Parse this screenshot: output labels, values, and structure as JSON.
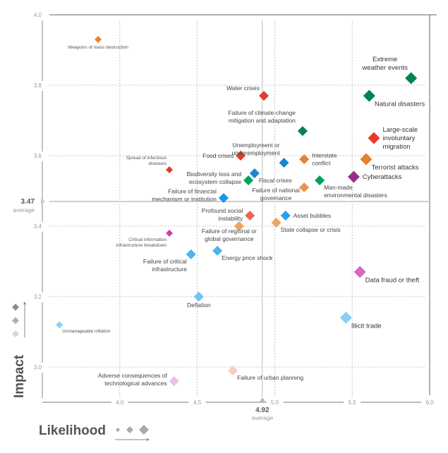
{
  "chart_data": {
    "type": "scatter",
    "title": "",
    "xlabel": "Likelihood",
    "ylabel": "Impact",
    "xlim": [
      3.5,
      6.0
    ],
    "ylim": [
      2.9,
      4.0
    ],
    "x_ticks": [
      "4.0",
      "4.5",
      "5.0",
      "5.5",
      "6.0"
    ],
    "y_ticks": [
      "4.0",
      "3.8",
      "3.6",
      "3.4",
      "3.2",
      "3.0"
    ],
    "grid": true,
    "averages": {
      "x": {
        "value": 4.92,
        "label": "4.92",
        "caption": "average"
      },
      "y": {
        "value": 3.47,
        "label": "3.47",
        "caption": "average"
      }
    },
    "points": [
      {
        "name": "Weapons of mass destruction",
        "lines": [
          "Weapons of mass destruction"
        ],
        "x": 3.86,
        "y": 3.93,
        "color": "#e8812c",
        "size": "s",
        "label_pos": "below"
      },
      {
        "name": "Extreme weather events",
        "lines": [
          "Extreme",
          "weather events"
        ],
        "x": 5.88,
        "y": 3.82,
        "color": "#00834d",
        "size": "l",
        "label_pos": "above-left"
      },
      {
        "name": "Natural disasters",
        "lines": [
          "Natural disasters"
        ],
        "x": 5.61,
        "y": 3.77,
        "color": "#00834d",
        "size": "l",
        "label_pos": "below-right"
      },
      {
        "name": "Water crises",
        "lines": [
          "Water crises"
        ],
        "x": 4.93,
        "y": 3.77,
        "color": "#e83a2c",
        "size": "m",
        "label_pos": "above-left"
      },
      {
        "name": "Failure of climate-change mitigation and adaptation",
        "lines": [
          "Failure of climate-change",
          "mitigation and adaptation"
        ],
        "x": 5.18,
        "y": 3.67,
        "color": "#00834d",
        "size": "m",
        "label_pos": "left"
      },
      {
        "name": "Large-scale involuntary migration",
        "lines": [
          "Large-scale",
          "involuntary",
          "migration"
        ],
        "x": 5.64,
        "y": 3.65,
        "color": "#e83a2c",
        "size": "l",
        "label_pos": "right"
      },
      {
        "name": "Terrorist attacks",
        "lines": [
          "Terrorist attacks"
        ],
        "x": 5.59,
        "y": 3.59,
        "color": "#e8812c",
        "size": "l",
        "label_pos": "below-right"
      },
      {
        "name": "Interstate conflict",
        "lines": [
          "Interstate",
          "conflict"
        ],
        "x": 5.19,
        "y": 3.59,
        "color": "#e8812c",
        "size": "m",
        "label_pos": "right"
      },
      {
        "name": "Food crises",
        "lines": [
          "Food crises"
        ],
        "x": 4.78,
        "y": 3.6,
        "color": "#e83a2c",
        "size": "m",
        "label_pos": "left"
      },
      {
        "name": "Unemployment or underemployment",
        "lines": [
          "Unemployment or",
          "underemployment"
        ],
        "x": 5.06,
        "y": 3.58,
        "color": "#1a86d0",
        "size": "m",
        "label_pos": "above-left"
      },
      {
        "name": "Spread of infectious diseases",
        "lines": [
          "Spread of infectious",
          "diseases"
        ],
        "x": 4.32,
        "y": 3.56,
        "color": "#e83a2c",
        "size": "s",
        "label_pos": "above-left"
      },
      {
        "name": "Fiscal crises",
        "lines": [
          "Fiscal crises"
        ],
        "x": 4.87,
        "y": 3.55,
        "color": "#1a86d0",
        "size": "m",
        "label_pos": "below-right"
      },
      {
        "name": "Biodiversity loss and ecosystem collapse",
        "lines": [
          "Biodiversity loss and",
          "ecosystem collapse"
        ],
        "x": 4.83,
        "y": 3.53,
        "color": "#00a35a",
        "size": "m",
        "label_pos": "left"
      },
      {
        "name": "Cyberattacks",
        "lines": [
          "Cyberattacks"
        ],
        "x": 5.51,
        "y": 3.54,
        "color": "#992d8b",
        "size": "l",
        "label_pos": "right"
      },
      {
        "name": "Man-made environmental disasters",
        "lines": [
          "Man-made",
          "environmental disasters"
        ],
        "x": 5.29,
        "y": 3.53,
        "color": "#00a35a",
        "size": "m",
        "label_pos": "below-right"
      },
      {
        "name": "Failure of national governance",
        "lines": [
          "Failure of national",
          "governance"
        ],
        "x": 5.19,
        "y": 3.51,
        "color": "#ec9449",
        "size": "m",
        "label_pos": "left"
      },
      {
        "name": "Failure of financial mechanism or institution",
        "lines": [
          "Failure of financial",
          "mechanism or institution"
        ],
        "x": 4.67,
        "y": 3.48,
        "color": "#1a96e4",
        "size": "m",
        "label_pos": "left"
      },
      {
        "name": "Profound social instability",
        "lines": [
          "Profound social",
          "instability"
        ],
        "x": 4.84,
        "y": 3.43,
        "color": "#ea6458",
        "size": "m",
        "label_pos": "left"
      },
      {
        "name": "Asset bubbles",
        "lines": [
          "Asset bubbles"
        ],
        "x": 5.07,
        "y": 3.43,
        "color": "#28a2ea",
        "size": "m",
        "label_pos": "right"
      },
      {
        "name": "State collapse or crisis",
        "lines": [
          "State collapse or crisis"
        ],
        "x": 5.01,
        "y": 3.41,
        "color": "#eea460",
        "size": "m",
        "label_pos": "below-right"
      },
      {
        "name": "Failure of regional or global governance",
        "lines": [
          "Failure of regional or",
          "global governance"
        ],
        "x": 4.77,
        "y": 3.4,
        "color": "#eea460",
        "size": "m",
        "label_pos": "below-left"
      },
      {
        "name": "Critical information infrastructure breakdown",
        "lines": [
          "Critical information",
          "infrastructure breakdown"
        ],
        "x": 4.32,
        "y": 3.38,
        "color": "#c941b6",
        "size": "s",
        "label_pos": "below-left"
      },
      {
        "name": "Energy price shock",
        "lines": [
          "Energy price shock"
        ],
        "x": 4.63,
        "y": 3.33,
        "color": "#4cb3ee",
        "size": "m",
        "label_pos": "below-right"
      },
      {
        "name": "Failure of critical infrastructure",
        "lines": [
          "Failure of critical",
          "infrastructure"
        ],
        "x": 4.46,
        "y": 3.32,
        "color": "#4cb3ee",
        "size": "m",
        "label_pos": "below-left"
      },
      {
        "name": "Data fraud or theft",
        "lines": [
          "Data fraud or theft"
        ],
        "x": 5.55,
        "y": 3.27,
        "color": "#d868c4",
        "size": "l",
        "label_pos": "below-right"
      },
      {
        "name": "Deflation",
        "lines": [
          "Deflation"
        ],
        "x": 4.51,
        "y": 3.2,
        "color": "#70c2f2",
        "size": "m",
        "label_pos": "below"
      },
      {
        "name": "Illicit trade",
        "lines": [
          "Illicit trade"
        ],
        "x": 5.46,
        "y": 3.14,
        "color": "#8bcff6",
        "size": "l",
        "label_pos": "below-right"
      },
      {
        "name": "Unmanageable inflation",
        "lines": [
          "Unmanageable inflation"
        ],
        "x": 3.61,
        "y": 3.12,
        "color": "#8bcff6",
        "size": "s",
        "label_pos": "below-right"
      },
      {
        "name": "Failure of urban planning",
        "lines": [
          "Failure of urban planning"
        ],
        "x": 4.73,
        "y": 2.99,
        "color": "#f6cdc6",
        "size": "m",
        "label_pos": "below-right"
      },
      {
        "name": "Adverse consequences of technological advances",
        "lines": [
          "Adverse consequences of",
          "technological advances"
        ],
        "x": 4.35,
        "y": 2.96,
        "color": "#ecbfe6",
        "size": "m",
        "label_pos": "left"
      }
    ],
    "legend": {
      "impact_scale_colors": [
        "#8c8c8c",
        "#b0b0b0",
        "#d6d6d6"
      ],
      "likelihood_scale_color": "#aaaaaa"
    }
  }
}
